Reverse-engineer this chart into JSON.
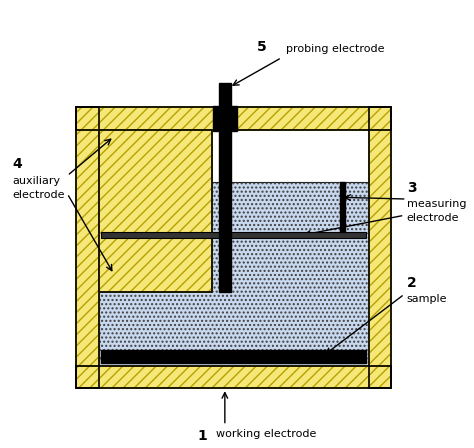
{
  "fig_width": 4.74,
  "fig_height": 4.48,
  "dpi": 100,
  "hatch_fill": "#f5e878",
  "hatch_color": "#b8a000",
  "liquid_color": "#c8d8ee",
  "labels": {
    "1": "1",
    "1_text": "working electrode",
    "2": "2",
    "2_text": "sample",
    "3": "3",
    "3_text_1": "measuring",
    "3_text_2": "electrode",
    "4": "4",
    "4_text_1": "auxiliary",
    "4_text_2": "electrode",
    "5": "5",
    "5_text": "probing electrode"
  }
}
